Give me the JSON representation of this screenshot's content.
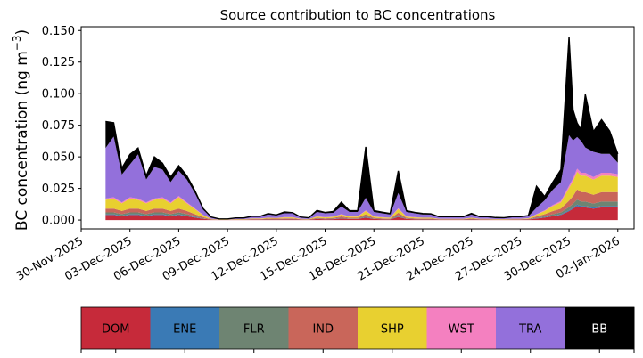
{
  "chart_data": {
    "type": "area",
    "title": "Source contribution to BC concentrations",
    "ylabel_main": "BC concentration (ng m",
    "ylabel_sup": "−3",
    "ylabel_close": ")",
    "xlabel": "",
    "ylim": [
      -0.007,
      0.153
    ],
    "xlim": [
      "2025-11-30T00:00",
      "2026-01-03T00:00"
    ],
    "yticks": [
      "0.000",
      "0.025",
      "0.050",
      "0.075",
      "0.100",
      "0.125",
      "0.150"
    ],
    "xticks": [
      "30-Nov-2025",
      "03-Dec-2025",
      "06-Dec-2025",
      "09-Dec-2025",
      "12-Dec-2025",
      "15-Dec-2025",
      "18-Dec-2025",
      "21-Dec-2025",
      "24-Dec-2025",
      "27-Dec-2025",
      "30-Dec-2025",
      "02-Jan-2026"
    ],
    "grid": false,
    "legend": {
      "placement": "bottom-colorbar",
      "items": [
        {
          "name": "DOM",
          "color": "#c62a3a",
          "text_color": "#000000"
        },
        {
          "name": "ENE",
          "color": "#3a7ab5",
          "text_color": "#000000"
        },
        {
          "name": "FLR",
          "color": "#6e8472",
          "text_color": "#000000"
        },
        {
          "name": "IND",
          "color": "#c9665a",
          "text_color": "#000000"
        },
        {
          "name": "SHP",
          "color": "#e8d030",
          "text_color": "#000000"
        },
        {
          "name": "WST",
          "color": "#f480c0",
          "text_color": "#000000"
        },
        {
          "name": "TRA",
          "color": "#9370db",
          "text_color": "#000000"
        },
        {
          "name": "BB",
          "color": "#000000",
          "text_color": "#ffffff"
        }
      ]
    },
    "x": [
      "2025-12-01T12:00",
      "2025-12-02T00:00",
      "2025-12-02T12:00",
      "2025-12-03T00:00",
      "2025-12-03T12:00",
      "2025-12-04T00:00",
      "2025-12-04T12:00",
      "2025-12-05T00:00",
      "2025-12-05T12:00",
      "2025-12-06T00:00",
      "2025-12-06T12:00",
      "2025-12-07T00:00",
      "2025-12-07T12:00",
      "2025-12-08T00:00",
      "2025-12-08T12:00",
      "2025-12-09T00:00",
      "2025-12-09T12:00",
      "2025-12-10T00:00",
      "2025-12-10T12:00",
      "2025-12-11T00:00",
      "2025-12-11T12:00",
      "2025-12-12T00:00",
      "2025-12-12T12:00",
      "2025-12-13T00:00",
      "2025-12-13T12:00",
      "2025-12-14T00:00",
      "2025-12-14T12:00",
      "2025-12-15T00:00",
      "2025-12-15T12:00",
      "2025-12-16T00:00",
      "2025-12-16T12:00",
      "2025-12-17T00:00",
      "2025-12-17T12:00",
      "2025-12-18T00:00",
      "2025-12-18T12:00",
      "2025-12-19T00:00",
      "2025-12-19T12:00",
      "2025-12-20T00:00",
      "2025-12-20T12:00",
      "2025-12-21T00:00",
      "2025-12-21T12:00",
      "2025-12-22T00:00",
      "2025-12-22T12:00",
      "2025-12-23T00:00",
      "2025-12-23T12:00",
      "2025-12-24T00:00",
      "2025-12-24T12:00",
      "2025-12-25T00:00",
      "2025-12-25T12:00",
      "2025-12-26T00:00",
      "2025-12-26T12:00",
      "2025-12-27T00:00",
      "2025-12-27T12:00",
      "2025-12-28T00:00",
      "2025-12-28T12:00",
      "2025-12-29T00:00",
      "2025-12-29T12:00",
      "2025-12-30T00:00",
      "2025-12-30T06:00",
      "2025-12-30T12:00",
      "2025-12-30T18:00",
      "2025-12-31T00:00",
      "2025-12-31T12:00",
      "2026-01-01T00:00",
      "2026-01-01T12:00",
      "2026-01-02T00:00"
    ],
    "series": [
      {
        "name": "DOM",
        "values": [
          0.004,
          0.004,
          0.003,
          0.004,
          0.004,
          0.003,
          0.004,
          0.004,
          0.003,
          0.004,
          0.003,
          0.002,
          0.001,
          0.0003,
          0.0001,
          0.0001,
          0.0002,
          0.0002,
          0.0003,
          0.0003,
          0.0005,
          0.0004,
          0.0006,
          0.0006,
          0.0003,
          0.0002,
          0.0008,
          0.0006,
          0.0007,
          0.0012,
          0.0008,
          0.0008,
          0.002,
          0.0008,
          0.0006,
          0.0005,
          0.0025,
          0.0008,
          0.0006,
          0.0005,
          0.0005,
          0.0003,
          0.0003,
          0.0003,
          0.0003,
          0.0005,
          0.0003,
          0.0003,
          0.0002,
          0.0002,
          0.0003,
          0.0003,
          0.0004,
          0.0012,
          0.002,
          0.003,
          0.004,
          0.007,
          0.009,
          0.011,
          0.01,
          0.01,
          0.009,
          0.01,
          0.01,
          0.01
        ]
      },
      {
        "name": "ENE",
        "values": [
          0.0005,
          0.0005,
          0.0005,
          0.0005,
          0.0005,
          0.0005,
          0.0005,
          0.0005,
          0.0005,
          0.0005,
          0.0005,
          0.0003,
          0.0001,
          5e-05,
          2e-05,
          2e-05,
          3e-05,
          3e-05,
          5e-05,
          5e-05,
          0.0001,
          8e-05,
          0.0001,
          0.0001,
          5e-05,
          3e-05,
          0.0001,
          0.0001,
          0.0001,
          0.0002,
          0.0001,
          0.0001,
          0.0003,
          0.0001,
          0.0001,
          0.0001,
          0.0003,
          0.0001,
          0.0001,
          0.0001,
          0.0001,
          5e-05,
          5e-05,
          5e-05,
          5e-05,
          0.0001,
          5e-05,
          5e-05,
          3e-05,
          3e-05,
          5e-05,
          5e-05,
          5e-05,
          0.0002,
          0.0003,
          0.0004,
          0.0005,
          0.0008,
          0.001,
          0.0012,
          0.0011,
          0.0011,
          0.001,
          0.0011,
          0.0011,
          0.0011
        ]
      },
      {
        "name": "FLR",
        "values": [
          0.0015,
          0.0015,
          0.0012,
          0.0015,
          0.0015,
          0.0012,
          0.0015,
          0.0015,
          0.0012,
          0.0015,
          0.0012,
          0.0008,
          0.0004,
          0.0001,
          5e-05,
          5e-05,
          0.0001,
          0.0001,
          0.0001,
          0.0001,
          0.0002,
          0.0002,
          0.0002,
          0.0002,
          0.0001,
          0.0001,
          0.0003,
          0.0002,
          0.0003,
          0.0005,
          0.0003,
          0.0003,
          0.0008,
          0.0003,
          0.0002,
          0.0002,
          0.001,
          0.0003,
          0.0002,
          0.0002,
          0.0002,
          0.0001,
          0.0001,
          0.0001,
          0.0001,
          0.0002,
          0.0001,
          0.0001,
          0.0001,
          0.0001,
          0.0001,
          0.0001,
          0.0002,
          0.0005,
          0.0008,
          0.0012,
          0.0015,
          0.0025,
          0.003,
          0.004,
          0.0035,
          0.0035,
          0.003,
          0.0035,
          0.0035,
          0.0035
        ]
      },
      {
        "name": "IND",
        "values": [
          0.003,
          0.003,
          0.0025,
          0.003,
          0.003,
          0.0025,
          0.003,
          0.003,
          0.0025,
          0.003,
          0.0025,
          0.0015,
          0.0008,
          0.0002,
          0.0001,
          0.0001,
          0.0002,
          0.0002,
          0.0003,
          0.0003,
          0.0004,
          0.0004,
          0.0005,
          0.0005,
          0.0002,
          0.0002,
          0.0006,
          0.0005,
          0.0006,
          0.001,
          0.0006,
          0.0006,
          0.0015,
          0.0006,
          0.0005,
          0.0004,
          0.002,
          0.0006,
          0.0005,
          0.0004,
          0.0004,
          0.0002,
          0.0002,
          0.0002,
          0.0002,
          0.0004,
          0.0002,
          0.0002,
          0.0002,
          0.0002,
          0.0002,
          0.0002,
          0.0003,
          0.001,
          0.0015,
          0.0025,
          0.003,
          0.005,
          0.006,
          0.008,
          0.0075,
          0.0075,
          0.007,
          0.0075,
          0.0075,
          0.0075
        ]
      },
      {
        "name": "SHP",
        "values": [
          0.007,
          0.008,
          0.006,
          0.008,
          0.007,
          0.006,
          0.007,
          0.008,
          0.006,
          0.009,
          0.006,
          0.004,
          0.0015,
          0.0003,
          0.0001,
          0.0001,
          0.0002,
          0.0002,
          0.0004,
          0.0004,
          0.0006,
          0.0005,
          0.0007,
          0.0007,
          0.0003,
          0.0002,
          0.0009,
          0.0007,
          0.0008,
          0.0015,
          0.0009,
          0.0009,
          0.0025,
          0.0009,
          0.0007,
          0.0006,
          0.003,
          0.0009,
          0.0007,
          0.0006,
          0.0006,
          0.0003,
          0.0003,
          0.0003,
          0.0003,
          0.0006,
          0.0003,
          0.0003,
          0.0002,
          0.0002,
          0.0003,
          0.0003,
          0.0004,
          0.0015,
          0.0025,
          0.004,
          0.005,
          0.01,
          0.012,
          0.014,
          0.013,
          0.013,
          0.012,
          0.013,
          0.013,
          0.012
        ]
      },
      {
        "name": "WST",
        "values": [
          0.001,
          0.001,
          0.0008,
          0.001,
          0.001,
          0.0008,
          0.001,
          0.001,
          0.0008,
          0.001,
          0.0008,
          0.0005,
          0.0003,
          0.0001,
          3e-05,
          3e-05,
          5e-05,
          5e-05,
          0.0001,
          0.0001,
          0.0001,
          0.0001,
          0.0002,
          0.0002,
          0.0001,
          5e-05,
          0.0002,
          0.0002,
          0.0002,
          0.0003,
          0.0002,
          0.0002,
          0.0005,
          0.0002,
          0.0002,
          0.0001,
          0.0006,
          0.0002,
          0.0002,
          0.0001,
          0.0001,
          0.0001,
          0.0001,
          0.0001,
          0.0001,
          0.0001,
          0.0001,
          0.0001,
          5e-05,
          5e-05,
          0.0001,
          0.0001,
          0.0001,
          0.0003,
          0.0005,
          0.0008,
          0.001,
          0.0018,
          0.002,
          0.0025,
          0.0023,
          0.0023,
          0.002,
          0.0023,
          0.0023,
          0.0022
        ]
      },
      {
        "name": "TRA",
        "values": [
          0.04,
          0.048,
          0.022,
          0.026,
          0.035,
          0.018,
          0.025,
          0.022,
          0.016,
          0.02,
          0.018,
          0.012,
          0.004,
          0.0012,
          0.0004,
          0.0004,
          0.0008,
          0.0008,
          0.0015,
          0.0015,
          0.0025,
          0.002,
          0.003,
          0.003,
          0.0012,
          0.0008,
          0.0035,
          0.003,
          0.003,
          0.006,
          0.0035,
          0.0035,
          0.01,
          0.0035,
          0.003,
          0.0025,
          0.012,
          0.0035,
          0.003,
          0.0025,
          0.0025,
          0.0012,
          0.0012,
          0.0012,
          0.0012,
          0.0025,
          0.0012,
          0.0012,
          0.0008,
          0.0008,
          0.0012,
          0.0012,
          0.0015,
          0.005,
          0.008,
          0.012,
          0.015,
          0.04,
          0.03,
          0.025,
          0.025,
          0.02,
          0.02,
          0.015,
          0.015,
          0.009
        ]
      },
      {
        "name": "BB",
        "values": [
          0.021,
          0.011,
          0.005,
          0.008,
          0.005,
          0.003,
          0.008,
          0.005,
          0.004,
          0.004,
          0.003,
          0.002,
          0.001,
          0.0001,
          0.0001,
          0.0001,
          0.0001,
          0.0001,
          0.0002,
          0.0002,
          0.0007,
          0.0004,
          0.0011,
          0.0005,
          0.0001,
          0.0002,
          0.0012,
          0.0007,
          0.0011,
          0.0034,
          0.001,
          0.001,
          0.0403,
          0.0011,
          0.001,
          0.0008,
          0.0175,
          0.001,
          0.0008,
          0.0008,
          0.0005,
          0.0004,
          0.0004,
          0.0004,
          0.0004,
          0.0008,
          0.0004,
          0.0004,
          0.0004,
          0.0003,
          0.0004,
          0.0004,
          0.0006,
          0.017,
          0.003,
          0.006,
          0.01,
          0.078,
          0.024,
          0.011,
          0.009,
          0.042,
          0.016,
          0.027,
          0.018,
          0.007
        ]
      }
    ]
  }
}
